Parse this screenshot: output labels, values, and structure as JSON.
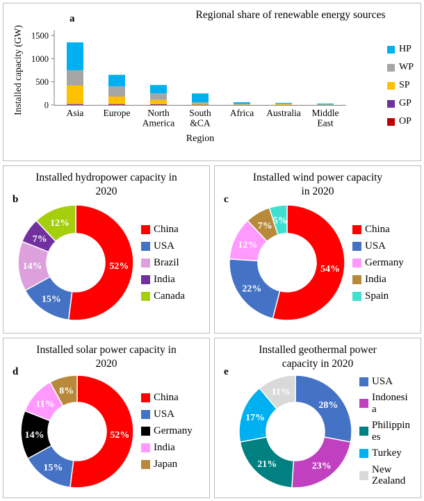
{
  "meta": {
    "background": "#ffffff",
    "panel_border_color": "#bdbdbd",
    "text_color": "#000000"
  },
  "chart_data": [
    {
      "id": "a",
      "panel_letter": "a",
      "type": "bar",
      "stacked": true,
      "title": "Regional share of renewable energy sources",
      "ylabel": "Installed capacity (GW)",
      "xlabel": "Region",
      "units": "GW",
      "categories": [
        "Asia",
        "Europe",
        "North\nAmerica",
        "South\n&CA",
        "Africa",
        "Australia",
        "Middle\nEast"
      ],
      "series": [
        {
          "name": "OP",
          "color": "#C00000",
          "values": [
            5,
            10,
            6,
            4,
            1,
            1,
            0
          ]
        },
        {
          "name": "GP",
          "color": "#7030A0",
          "values": [
            15,
            10,
            9,
            5,
            1,
            0,
            1
          ]
        },
        {
          "name": "SP",
          "color": "#FFC000",
          "values": [
            400,
            160,
            95,
            20,
            11,
            18,
            7
          ]
        },
        {
          "name": "WP",
          "color": "#A6A6A6",
          "values": [
            330,
            220,
            140,
            30,
            7,
            9,
            1
          ]
        },
        {
          "name": "HP",
          "color": "#00B0F0",
          "values": [
            600,
            250,
            180,
            190,
            38,
            16,
            20
          ]
        }
      ],
      "legend_order": [
        "HP",
        "WP",
        "SP",
        "GP",
        "OP"
      ],
      "legend_position": "right",
      "yticks": [
        0,
        500,
        1000,
        1500
      ],
      "ylim": [
        0,
        1500
      ],
      "grid": false
    },
    {
      "id": "b",
      "panel_letter": "b",
      "type": "pie",
      "donut": true,
      "title": "Installed hydropower capacity in\n2020",
      "labels": [
        "China",
        "USA",
        "Brazil",
        "India",
        "Canada"
      ],
      "values": [
        52,
        15,
        14,
        7,
        12
      ],
      "unit": "%",
      "colors": [
        "#FF0000",
        "#4472C4",
        "#DDA0DD",
        "#7030A0",
        "#A5CE0C"
      ],
      "start_angle_deg": 0,
      "direction": "clockwise",
      "legend_position": "right"
    },
    {
      "id": "c",
      "panel_letter": "c",
      "type": "pie",
      "donut": true,
      "title": "Installed wind power capacity\nin 2020",
      "labels": [
        "China",
        "USA",
        "Germany",
        "India",
        "Spain"
      ],
      "values": [
        54,
        22,
        12,
        7,
        5
      ],
      "unit": "%",
      "colors": [
        "#FF0000",
        "#4472C4",
        "#FF99FF",
        "#B8893B",
        "#40E0D0"
      ],
      "start_angle_deg": 0,
      "direction": "clockwise",
      "legend_position": "right"
    },
    {
      "id": "d",
      "panel_letter": "d",
      "type": "pie",
      "donut": true,
      "title": "Installed solar power capacity in\n2020",
      "labels": [
        "China",
        "USA",
        "Germany",
        "India",
        "Japan"
      ],
      "values": [
        52,
        15,
        14,
        11,
        8
      ],
      "unit": "%",
      "colors": [
        "#FF0000",
        "#4472C4",
        "#000000",
        "#FF99FF",
        "#B8893B"
      ],
      "start_angle_deg": 0,
      "direction": "clockwise",
      "legend_position": "right"
    },
    {
      "id": "e",
      "panel_letter": "e",
      "type": "pie",
      "donut": true,
      "title": "Installed geothermal power\ncapacity in 2020",
      "labels": [
        "USA",
        "Indonesia",
        "Philippines",
        "Turkey",
        "New Zealand"
      ],
      "values": [
        28,
        23,
        21,
        17,
        11
      ],
      "unit": "%",
      "colors": [
        "#4472C4",
        "#C040C0",
        "#008080",
        "#00B0F0",
        "#D9D9D9"
      ],
      "start_angle_deg": 0,
      "direction": "clockwise",
      "legend_position": "right"
    }
  ]
}
